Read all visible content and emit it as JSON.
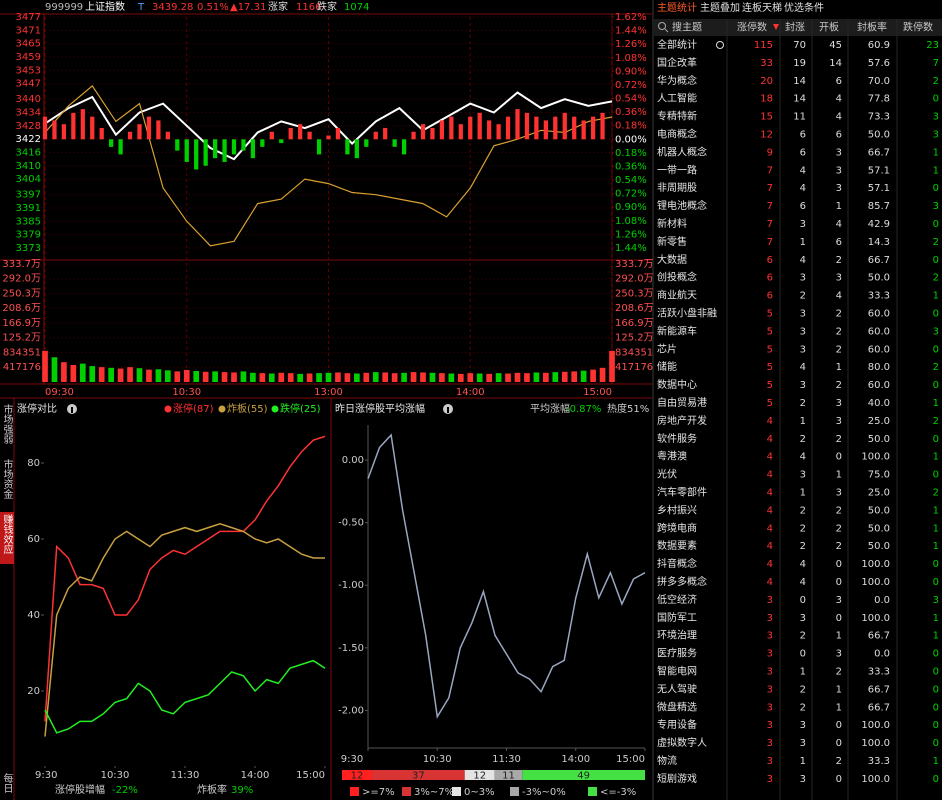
{
  "header": {
    "code": "999999",
    "name": "上证指数",
    "flag": "T",
    "price": "3439.28",
    "pct": "0.51%",
    "change": "▲17.31",
    "up_label": "涨家",
    "up": "1166",
    "down_label": "跌家",
    "down": "1074"
  },
  "sidebar": {
    "tabs": [
      "市场强弱",
      "市场资金",
      "赚钱效应"
    ],
    "active": 2,
    "footer": "每日"
  },
  "chart_data": [
    {
      "type": "line",
      "up_color": "#ff3232",
      "down_color": "#00d000",
      "grid": true,
      "x": [
        0,
        10,
        20,
        30,
        40,
        50,
        60,
        70,
        80,
        90,
        100,
        110,
        120,
        130,
        140,
        150,
        160,
        170,
        180,
        190,
        200,
        210,
        220,
        230,
        240
      ],
      "series": [
        {
          "color": "#ffffff",
          "values": [
            3429,
            3436,
            3441,
            3424,
            3434,
            3438,
            3428,
            3418,
            3413,
            3425,
            3430,
            3427,
            3431,
            3420,
            3430,
            3436,
            3426,
            3432,
            3438,
            3434,
            3443,
            3436,
            3440,
            3437,
            3439
          ]
        },
        {
          "color": "#d9a030",
          "values": [
            3425,
            3437,
            3446,
            3430,
            3438,
            3400,
            3385,
            3374,
            3376,
            3393,
            3395,
            3404,
            3402,
            3398,
            3397,
            3395,
            3393,
            3387,
            3400,
            3419,
            3422,
            3426,
            3425,
            3430,
            3432
          ]
        },
        {
          "type": "bar",
          "axis": "y2",
          "x": [
            0,
            4,
            8,
            12,
            16,
            20,
            24,
            28,
            32,
            36,
            40,
            44,
            48,
            52,
            56,
            60,
            64,
            68,
            72,
            76,
            80,
            84,
            88,
            92,
            96,
            100,
            104,
            108,
            112,
            116,
            120,
            124,
            128,
            132,
            136,
            140,
            144,
            148,
            152,
            156,
            160,
            164,
            168,
            172,
            176,
            180,
            184,
            188,
            192,
            196,
            200,
            204,
            208,
            212,
            216,
            220,
            224,
            228,
            232,
            236
          ],
          "values": [
            0.3,
            0.25,
            0.2,
            0.35,
            0.4,
            0.3,
            0.15,
            -0.1,
            -0.2,
            0.1,
            0.2,
            0.3,
            0.25,
            0.1,
            -0.15,
            -0.3,
            -0.4,
            -0.35,
            -0.25,
            -0.3,
            -0.2,
            -0.15,
            -0.25,
            -0.1,
            0.1,
            -0.05,
            0.15,
            0.2,
            0.1,
            -0.2,
            0.05,
            0.15,
            -0.2,
            -0.25,
            -0.1,
            0.1,
            0.15,
            -0.1,
            -0.2,
            0.1,
            0.2,
            0.15,
            0.25,
            0.3,
            0.2,
            0.3,
            0.35,
            0.25,
            0.2,
            0.3,
            0.4,
            0.35,
            0.3,
            0.25,
            0.3,
            0.35,
            0.3,
            0.25,
            0.3,
            0.35
          ]
        }
      ],
      "xlim": [
        0,
        240
      ],
      "xticks": [
        {
          "value": 0,
          "label": "09:30"
        },
        {
          "value": 60,
          "label": "10:30"
        },
        {
          "value": 120,
          "label": "13:00"
        },
        {
          "value": 180,
          "label": "14:00"
        },
        {
          "value": 240,
          "label": "15:00"
        }
      ],
      "ylim": [
        3373,
        3477
      ],
      "yticks": [
        3477,
        3471,
        3465,
        3459,
        3453,
        3447,
        3440,
        3434,
        3428,
        3422,
        3416,
        3410,
        3404,
        3397,
        3391,
        3385,
        3379,
        3373
      ],
      "y2lim": [
        -1.44,
        1.62
      ],
      "y2ticks": [
        {
          "value": 1.62,
          "label": "1.62%"
        },
        {
          "value": 1.44,
          "label": "1.44%"
        },
        {
          "value": 1.26,
          "label": "1.26%"
        },
        {
          "value": 1.08,
          "label": "1.08%"
        },
        {
          "value": 0.9,
          "label": "0.90%"
        },
        {
          "value": 0.72,
          "label": "0.72%"
        },
        {
          "value": 0.54,
          "label": "0.54%"
        },
        {
          "value": 0.36,
          "label": "0.36%"
        },
        {
          "value": 0.18,
          "label": "0.18%"
        },
        {
          "value": 0,
          "label": "0.00%"
        },
        {
          "value": -0.18,
          "label": "0.18%"
        },
        {
          "value": -0.36,
          "label": "0.36%"
        },
        {
          "value": -0.54,
          "label": "0.54%"
        },
        {
          "value": -0.72,
          "label": "0.72%"
        },
        {
          "value": -0.9,
          "label": "0.90%"
        },
        {
          "value": -1.08,
          "label": "1.08%"
        },
        {
          "value": -1.26,
          "label": "1.26%"
        },
        {
          "value": -1.44,
          "label": "1.44%"
        }
      ]
    },
    {
      "type": "bar",
      "xlim": [
        0,
        240
      ],
      "x": [
        0,
        4,
        8,
        12,
        16,
        20,
        24,
        28,
        32,
        36,
        40,
        44,
        48,
        52,
        56,
        60,
        64,
        68,
        72,
        76,
        80,
        84,
        88,
        92,
        96,
        100,
        104,
        108,
        112,
        116,
        120,
        124,
        128,
        132,
        136,
        140,
        144,
        148,
        152,
        156,
        160,
        164,
        168,
        172,
        176,
        180,
        184,
        188,
        192,
        196,
        200,
        204,
        208,
        212,
        216,
        220,
        224,
        228,
        232,
        236,
        240
      ],
      "values": [
        880000,
        700000,
        560000,
        480000,
        520000,
        450000,
        420000,
        400000,
        380000,
        420000,
        390000,
        350000,
        360000,
        330000,
        300000,
        340000,
        310000,
        290000,
        300000,
        280000,
        270000,
        300000,
        260000,
        250000,
        240000,
        260000,
        250000,
        230000,
        240000,
        250000,
        260000,
        270000,
        250000,
        240000,
        260000,
        280000,
        270000,
        250000,
        260000,
        280000,
        270000,
        260000,
        250000,
        240000,
        230000,
        250000,
        240000,
        230000,
        250000,
        240000,
        260000,
        250000,
        270000,
        260000,
        280000,
        290000,
        300000,
        320000,
        350000,
        400000,
        880000
      ],
      "colors": [
        "#ff3232",
        "#00d000",
        "#ff3232",
        "#ff3232",
        "#00d000",
        "#00d000",
        "#ff3232",
        "#00d000",
        "#ff3232",
        "#ff3232",
        "#00d000",
        "#ff3232",
        "#00d000",
        "#00d000",
        "#ff3232",
        "#ff3232",
        "#00d000",
        "#ff3232",
        "#00d000",
        "#ff3232",
        "#ff3232",
        "#00d000",
        "#00d000",
        "#ff3232",
        "#00d000",
        "#ff3232",
        "#ff3232",
        "#00d000",
        "#ff3232",
        "#00d000",
        "#00d000",
        "#ff3232",
        "#ff3232",
        "#00d000",
        "#ff3232",
        "#00d000",
        "#ff3232",
        "#ff3232",
        "#00d000",
        "#ff3232",
        "#ff3232",
        "#00d000",
        "#ff3232",
        "#00d000",
        "#ff3232",
        "#ff3232",
        "#00d000",
        "#ff3232",
        "#00d000",
        "#ff3232",
        "#ff3232",
        "#ff3232",
        "#00d000",
        "#ff3232",
        "#00d000",
        "#ff3232",
        "#ff3232",
        "#00d000",
        "#ff3232",
        "#ff3232",
        "#ff3232"
      ],
      "ylim": [
        0,
        3337000
      ],
      "yticks": [
        {
          "value": 3337000,
          "label": "333.7万"
        },
        {
          "value": 2920000,
          "label": "292.0万"
        },
        {
          "value": 2503000,
          "label": "250.3万"
        },
        {
          "value": 2086000,
          "label": "208.6万"
        },
        {
          "value": 1669000,
          "label": "166.9万"
        },
        {
          "value": 1252000,
          "label": "125.2万"
        },
        834351,
        417176
      ]
    },
    {
      "type": "line",
      "title": "涨停对比",
      "x": [
        0,
        10,
        20,
        30,
        40,
        50,
        60,
        70,
        80,
        90,
        100,
        110,
        120,
        130,
        140,
        150,
        160,
        170,
        180,
        190,
        200,
        210,
        220,
        230,
        240
      ],
      "series": [
        {
          "name": "涨停(87)",
          "color": "#ff3232",
          "values": [
            12,
            58,
            55,
            48,
            48,
            47,
            40,
            40,
            44,
            52,
            55,
            57,
            56,
            58,
            60,
            62,
            62,
            62,
            65,
            70,
            74,
            79,
            83,
            86,
            87
          ]
        },
        {
          "name": "炸板(55)",
          "color": "#c8a040",
          "values": [
            8,
            40,
            47,
            50,
            49,
            55,
            60,
            62,
            60,
            58,
            61,
            62,
            63,
            62,
            63,
            64,
            63,
            62,
            60,
            59,
            60,
            58,
            56,
            55,
            55
          ]
        },
        {
          "name": "跌停(25)",
          "color": "#22ee22",
          "values": [
            15,
            9,
            10,
            12,
            12,
            14,
            17,
            18,
            22,
            20,
            15,
            14,
            17,
            18,
            19,
            22,
            25,
            24,
            20,
            23,
            22,
            26,
            27,
            28,
            26
          ]
        }
      ],
      "xlim": [
        0,
        240
      ],
      "xticks": [
        {
          "value": 0,
          "label": "9:30"
        },
        {
          "value": 60,
          "label": "10:30"
        },
        {
          "value": 120,
          "label": "11:30"
        },
        {
          "value": 180,
          "label": "14:00"
        },
        {
          "value": 240,
          "label": "15:00"
        }
      ],
      "ylim": [
        5,
        90
      ],
      "yticks": [
        20,
        40,
        60,
        80
      ],
      "footer": [
        {
          "label": "涨停股增幅",
          "value": "-22%"
        },
        {
          "label": "炸板率",
          "value": "39%"
        }
      ]
    },
    {
      "type": "line",
      "title": "昨日涨停股平均涨幅",
      "stat_label": "平均涨幅",
      "stat_value": "-0.87%",
      "heat": "热度51%",
      "x": [
        0,
        10,
        20,
        30,
        40,
        50,
        60,
        70,
        80,
        90,
        100,
        110,
        120,
        130,
        140,
        150,
        160,
        170,
        180,
        190,
        200,
        210,
        220,
        230,
        240
      ],
      "series": [
        {
          "color": "#9aa6c0",
          "values": [
            -0.15,
            0.1,
            0.2,
            -0.4,
            -0.9,
            -1.4,
            -2.05,
            -1.9,
            -1.5,
            -1.3,
            -1.05,
            -1.4,
            -1.55,
            -1.7,
            -1.75,
            -1.85,
            -1.65,
            -1.6,
            -1.1,
            -0.75,
            -1.1,
            -0.9,
            -1.15,
            -0.95,
            -0.9
          ]
        }
      ],
      "xlim": [
        0,
        240
      ],
      "xticks": [
        {
          "value": 0,
          "label": "9:30"
        },
        {
          "value": 60,
          "label": "10:30"
        },
        {
          "value": 120,
          "label": "11:30"
        },
        {
          "value": 180,
          "label": "14:00"
        },
        {
          "value": 240,
          "label": "15:00"
        }
      ],
      "ylim": [
        -2.3,
        0.28
      ],
      "yticks": [
        {
          "value": 0,
          "label": "0.00"
        },
        {
          "value": -0.5,
          "label": "-0.50"
        },
        {
          "value": -1,
          "label": "-1.00"
        },
        {
          "value": -1.5,
          "label": "-1.50"
        },
        {
          "value": -2,
          "label": "-2.00"
        }
      ],
      "distribution": {
        "values": [
          12,
          37,
          12,
          11,
          49
        ],
        "colors": [
          "#ff2020",
          "#d83434",
          "#e4e4e4",
          "#a8a8a8",
          "#44e044"
        ],
        "labels": [
          ">=7%",
          "3%~7%",
          "0~3%",
          "-3%~0%",
          "<=-3%"
        ]
      }
    }
  ],
  "table": {
    "tabs": [
      "主题统计",
      "主题叠加",
      "连板天梯",
      "优选条件"
    ],
    "active_tab": 0,
    "columns": [
      "搜主题",
      "涨停数",
      "封涨",
      "开板",
      "封板率",
      "跌停数"
    ],
    "rows": [
      [
        "全部统计",
        "115",
        "70",
        "45",
        "60.9",
        "23"
      ],
      [
        "国企改革",
        "33",
        "19",
        "14",
        "57.6",
        "7"
      ],
      [
        "华为概念",
        "20",
        "14",
        "6",
        "70.0",
        "2"
      ],
      [
        "人工智能",
        "18",
        "14",
        "4",
        "77.8",
        "0"
      ],
      [
        "专精特新",
        "15",
        "11",
        "4",
        "73.3",
        "3"
      ],
      [
        "电商概念",
        "12",
        "6",
        "6",
        "50.0",
        "3"
      ],
      [
        "机器人概念",
        "9",
        "6",
        "3",
        "66.7",
        "1"
      ],
      [
        "一带一路",
        "7",
        "4",
        "3",
        "57.1",
        "1"
      ],
      [
        "非周期股",
        "7",
        "4",
        "3",
        "57.1",
        "0"
      ],
      [
        "锂电池概念",
        "7",
        "6",
        "1",
        "85.7",
        "3"
      ],
      [
        "新材料",
        "7",
        "3",
        "4",
        "42.9",
        "0"
      ],
      [
        "新零售",
        "7",
        "1",
        "6",
        "14.3",
        "2"
      ],
      [
        "大数据",
        "6",
        "4",
        "2",
        "66.7",
        "0"
      ],
      [
        "创投概念",
        "6",
        "3",
        "3",
        "50.0",
        "2"
      ],
      [
        "商业航天",
        "6",
        "2",
        "4",
        "33.3",
        "1"
      ],
      [
        "活跃小盘非融",
        "5",
        "3",
        "2",
        "60.0",
        "0"
      ],
      [
        "新能源车",
        "5",
        "3",
        "2",
        "60.0",
        "3"
      ],
      [
        "芯片",
        "5",
        "3",
        "2",
        "60.0",
        "0"
      ],
      [
        "储能",
        "5",
        "4",
        "1",
        "80.0",
        "2"
      ],
      [
        "数据中心",
        "5",
        "3",
        "2",
        "60.0",
        "0"
      ],
      [
        "自由贸易港",
        "5",
        "2",
        "3",
        "40.0",
        "1"
      ],
      [
        "房地产开发",
        "4",
        "1",
        "3",
        "25.0",
        "2"
      ],
      [
        "软件服务",
        "4",
        "2",
        "2",
        "50.0",
        "0"
      ],
      [
        "粤港澳",
        "4",
        "4",
        "0",
        "100.0",
        "1"
      ],
      [
        "光伏",
        "4",
        "3",
        "1",
        "75.0",
        "0"
      ],
      [
        "汽车零部件",
        "4",
        "1",
        "3",
        "25.0",
        "2"
      ],
      [
        "乡村振兴",
        "4",
        "2",
        "2",
        "50.0",
        "1"
      ],
      [
        "跨境电商",
        "4",
        "2",
        "2",
        "50.0",
        "1"
      ],
      [
        "数据要素",
        "4",
        "2",
        "2",
        "50.0",
        "1"
      ],
      [
        "抖音概念",
        "4",
        "4",
        "0",
        "100.0",
        "0"
      ],
      [
        "拼多多概念",
        "4",
        "4",
        "0",
        "100.0",
        "0"
      ],
      [
        "低空经济",
        "3",
        "0",
        "3",
        "0.0",
        "3"
      ],
      [
        "国防军工",
        "3",
        "3",
        "0",
        "100.0",
        "1"
      ],
      [
        "环境治理",
        "3",
        "2",
        "1",
        "66.7",
        "1"
      ],
      [
        "医疗服务",
        "3",
        "0",
        "3",
        "0.0",
        "0"
      ],
      [
        "智能电网",
        "3",
        "1",
        "2",
        "33.3",
        "0"
      ],
      [
        "无人驾驶",
        "3",
        "2",
        "1",
        "66.7",
        "0"
      ],
      [
        "微盘精选",
        "3",
        "2",
        "1",
        "66.7",
        "0"
      ],
      [
        "专用设备",
        "3",
        "3",
        "0",
        "100.0",
        "0"
      ],
      [
        "虚拟数字人",
        "3",
        "3",
        "0",
        "100.0",
        "0"
      ],
      [
        "物流",
        "3",
        "1",
        "2",
        "33.3",
        "1"
      ],
      [
        "短剧游戏",
        "3",
        "3",
        "0",
        "100.0",
        "0"
      ]
    ]
  }
}
